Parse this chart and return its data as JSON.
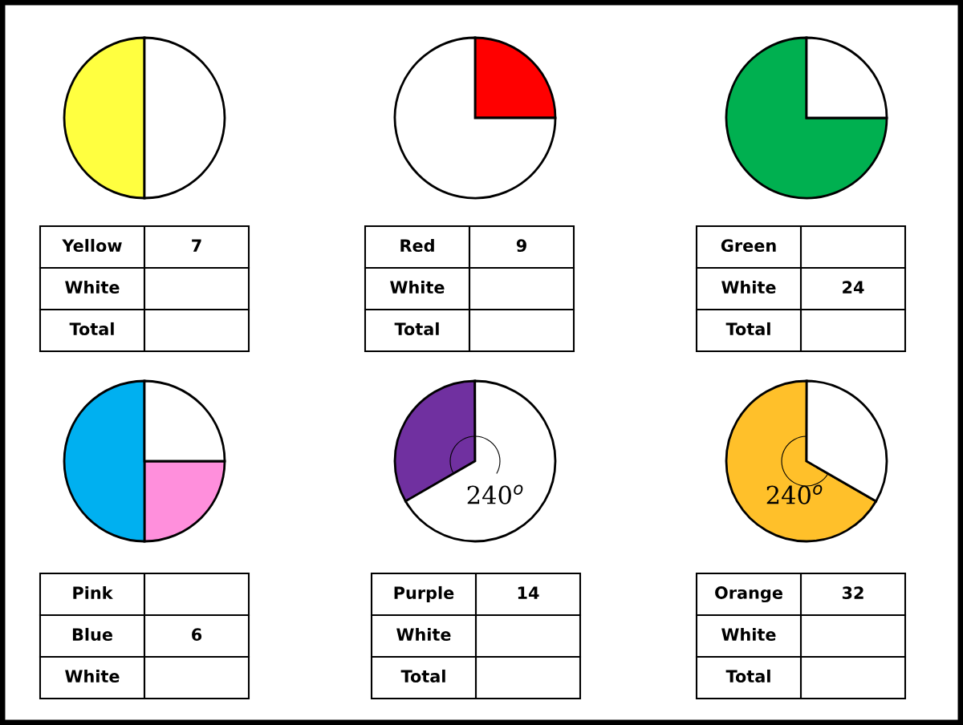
{
  "chart_data": [
    {
      "type": "pie",
      "categories": [
        null,
        null
      ],
      "values": [
        50,
        50
      ],
      "colors": [
        "#ffff40",
        "#ffffff"
      ]
    },
    {
      "type": "other",
      "annotations": [
        "Yellow",
        "7",
        "White",
        "Total"
      ]
    },
    {
      "type": "pie",
      "categories": [
        null,
        null
      ],
      "values": [
        25,
        75
      ],
      "colors": [
        "#ff0000",
        "#ffffff"
      ]
    },
    {
      "type": "other",
      "annotations": [
        "Red",
        "9",
        "White",
        "Total"
      ]
    },
    {
      "type": "pie",
      "categories": [
        null,
        null
      ],
      "values": [
        75,
        25
      ],
      "colors": [
        "#00b050",
        "#ffffff"
      ]
    },
    {
      "type": "other",
      "annotations": [
        "Green",
        "White",
        "24",
        "Total"
      ]
    },
    {
      "type": "pie",
      "categories": [
        null,
        null,
        null
      ],
      "values": [
        25,
        50,
        25
      ],
      "colors": [
        "#ff8fdc",
        "#00b0f0",
        "#ffffff"
      ]
    },
    {
      "type": "other",
      "annotations": [
        "Pink",
        "Blue",
        "6",
        "White"
      ]
    },
    {
      "type": "pie",
      "categories": [
        null,
        null
      ],
      "values": [
        33.3,
        66.7
      ],
      "colors": [
        "#7030a0",
        "#ffffff"
      ],
      "annotations": [
        "240$^{o}$"
      ]
    },
    {
      "type": "other",
      "annotations": [
        "Purple",
        "14",
        "White",
        "Total"
      ]
    },
    {
      "type": "pie",
      "categories": [
        null,
        null
      ],
      "values": [
        66.7,
        33.3
      ],
      "colors": [
        "#ffc02a",
        "#ffffff"
      ],
      "annotations": [
        "240$^{o}$"
      ]
    },
    {
      "type": "other",
      "annotations": [
        "Orange",
        "32",
        "White",
        "Total"
      ]
    }
  ]
}
